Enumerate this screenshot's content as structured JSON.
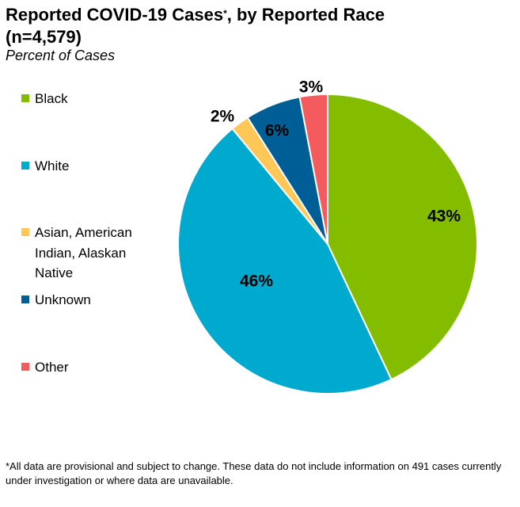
{
  "header": {
    "title_main": "Reported COVID-19 Cases",
    "title_mark": "*",
    "title_rest": ", by Reported Race",
    "title_line2": "(n=4,579)",
    "subtitle": "Percent of Cases"
  },
  "footnote": "*All data are provisional and subject to change. These data do not include information on 491 cases currently under investigation or where data are unavailable.",
  "chart_data": {
    "type": "pie",
    "title": "Reported COVID-19 Cases*, by Reported Race (n=4,579)",
    "subtitle": "Percent of Cases",
    "unit": "%",
    "legend_position": "left",
    "slices": [
      {
        "name": "Black",
        "value": 43,
        "label": "43%",
        "color": "#84bd00"
      },
      {
        "name": "White",
        "value": 46,
        "label": "46%",
        "color": "#00a9ce"
      },
      {
        "name": "Asian, American Indian, Alaskan Native",
        "value": 2,
        "label": "2%",
        "color": "#ffc658"
      },
      {
        "name": "Unknown",
        "value": 6,
        "label": "6%",
        "color": "#005e97"
      },
      {
        "name": "Other",
        "value": 3,
        "label": "3%",
        "color": "#f35b5f"
      }
    ]
  }
}
